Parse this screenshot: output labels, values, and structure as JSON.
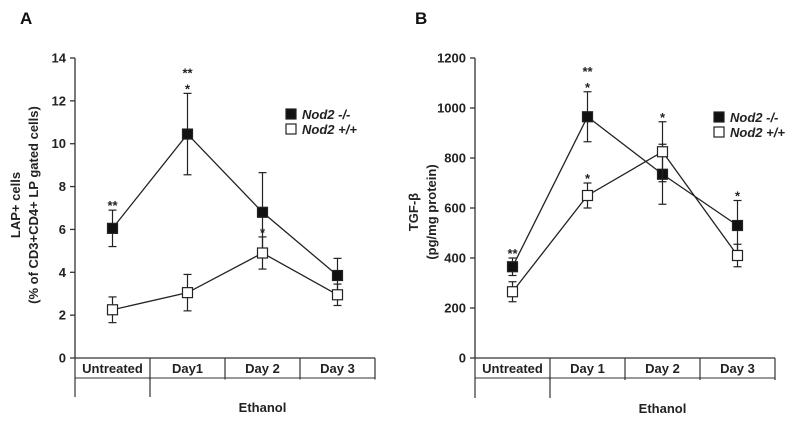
{
  "figure": {
    "panel_letters": [
      "A",
      "B"
    ]
  },
  "chart_data": [
    {
      "type": "line",
      "panel": "A",
      "categories": [
        "Untreated",
        "Day1",
        "Day 2",
        "Day 3"
      ],
      "group_label": "Ethanol",
      "ylabel": [
        "LAP+ cells",
        "(% of CD3+CD4+ LP gated cells)"
      ],
      "ylim": [
        0,
        14
      ],
      "yticks": [
        0,
        2,
        4,
        6,
        8,
        10,
        12,
        14
      ],
      "series": [
        {
          "name": "Nod2 -/-",
          "marker": "filled-square",
          "values": [
            6.05,
            10.45,
            6.8,
            3.85
          ],
          "errors": [
            0.85,
            1.9,
            1.85,
            0.8
          ]
        },
        {
          "name": "Nod2 +/+",
          "marker": "open-square",
          "values": [
            2.25,
            3.05,
            4.9,
            2.95
          ],
          "errors": [
            0.6,
            0.85,
            0.75,
            0.5
          ]
        }
      ],
      "annotations": [
        {
          "category": "Untreated",
          "y": 6.9,
          "labels": [
            "**"
          ]
        },
        {
          "category": "Day1",
          "y": 12.35,
          "labels": [
            "**",
            "*"
          ]
        },
        {
          "category": "Day 2",
          "y": 5.65,
          "labels": [
            "*"
          ]
        }
      ]
    },
    {
      "type": "line",
      "panel": "B",
      "categories": [
        "Untreated",
        "Day 1",
        "Day 2",
        "Day 3"
      ],
      "group_label": "Ethanol",
      "ylabel": [
        "TGF-β",
        "(pg/mg protein)"
      ],
      "ylim": [
        0,
        1200
      ],
      "yticks": [
        0,
        200,
        400,
        600,
        800,
        1000,
        1200
      ],
      "series": [
        {
          "name": "Nod2 -/-",
          "marker": "filled-square",
          "values": [
            365,
            965,
            735,
            530
          ],
          "errors": [
            35,
            100,
            120,
            100
          ]
        },
        {
          "name": "Nod2 +/+",
          "marker": "open-square",
          "values": [
            265,
            650,
            825,
            410
          ],
          "errors": [
            40,
            50,
            120,
            45
          ]
        }
      ],
      "annotations": [
        {
          "category": "Untreated",
          "y": 400,
          "labels": [
            "**"
          ]
        },
        {
          "category": "Day 1",
          "y": 1065,
          "labels": [
            "**",
            "*"
          ]
        },
        {
          "category": "Day 1",
          "y": 700,
          "labels": [
            "*"
          ]
        },
        {
          "category": "Day 2",
          "y": 945,
          "labels": [
            "*"
          ]
        },
        {
          "category": "Day 3",
          "y": 630,
          "labels": [
            "*"
          ]
        }
      ]
    }
  ]
}
